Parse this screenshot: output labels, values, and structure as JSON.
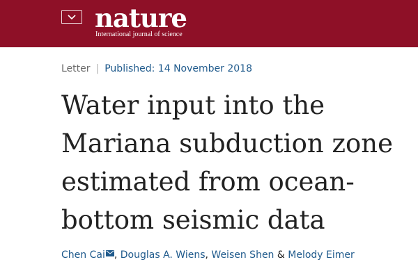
{
  "header": {
    "background_color": "#8e1027",
    "menu_icon": "chevron-down-icon",
    "logo": {
      "name": "nature",
      "tagline": "International journal of science"
    }
  },
  "article": {
    "type": "Letter",
    "separator": "|",
    "published": "Published: 14 November 2018",
    "title_lines": [
      "Water input into the",
      "Mariana subduction zone",
      "estimated from ocean-",
      "bottom seismic data"
    ],
    "authors": [
      {
        "name": "Chen Cai",
        "has_email": true
      },
      {
        "name": "Douglas A. Wiens"
      },
      {
        "name": "Weisen Shen"
      },
      {
        "name": "Melody Eimer"
      }
    ],
    "author_separators": [
      ", ",
      ", ",
      " & "
    ],
    "link_color": "#1f5a8c"
  }
}
